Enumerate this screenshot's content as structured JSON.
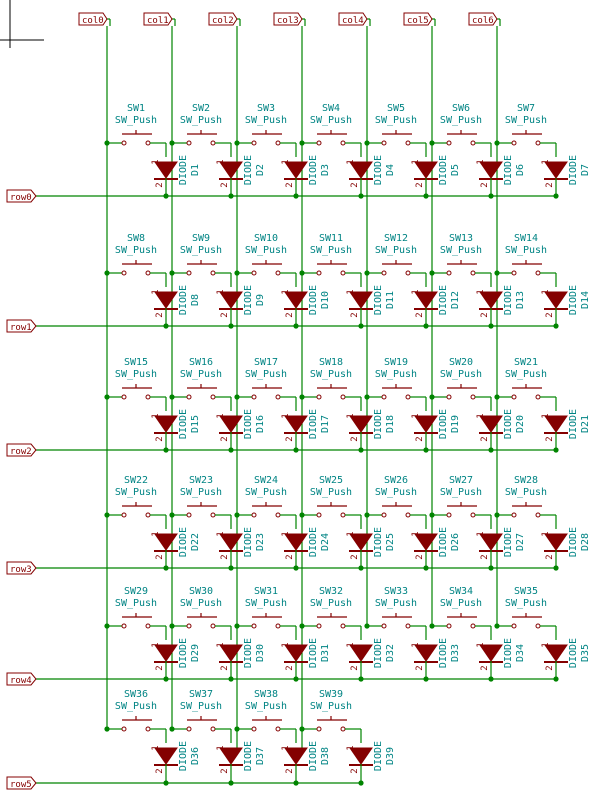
{
  "columns": [
    "col0",
    "col1",
    "col2",
    "col3",
    "col4",
    "col5",
    "col6"
  ],
  "rows": [
    "row0",
    "row1",
    "row2",
    "row3",
    "row4",
    "row5"
  ],
  "switch_value": "SW_Push",
  "diode_value": "DIODE",
  "pin_labels": [
    "1",
    "2"
  ],
  "key_counts_per_row": [
    7,
    7,
    7,
    7,
    7,
    4
  ],
  "switches": [
    "SW1",
    "SW2",
    "SW3",
    "SW4",
    "SW5",
    "SW6",
    "SW7",
    "SW8",
    "SW9",
    "SW10",
    "SW11",
    "SW12",
    "SW13",
    "SW14",
    "SW15",
    "SW16",
    "SW17",
    "SW18",
    "SW19",
    "SW20",
    "SW21",
    "SW22",
    "SW23",
    "SW24",
    "SW25",
    "SW26",
    "SW27",
    "SW28",
    "SW29",
    "SW30",
    "SW31",
    "SW32",
    "SW33",
    "SW34",
    "SW35",
    "SW36",
    "SW37",
    "SW38",
    "SW39"
  ],
  "diodes": [
    "D1",
    "D2",
    "D3",
    "D4",
    "D5",
    "D6",
    "D7",
    "D8",
    "D9",
    "D10",
    "D11",
    "D12",
    "D13",
    "D14",
    "D15",
    "D16",
    "D17",
    "D18",
    "D19",
    "D20",
    "D21",
    "D22",
    "D23",
    "D24",
    "D25",
    "D26",
    "D27",
    "D28",
    "D29",
    "D30",
    "D31",
    "D32",
    "D33",
    "D34",
    "D35",
    "D36",
    "D37",
    "D38",
    "D39"
  ],
  "colors": {
    "wire": "#008400",
    "component": "#840000",
    "diode_fill": "#840000",
    "ref_text": "#008484",
    "junction": "#008400",
    "background": "#ffffff"
  }
}
